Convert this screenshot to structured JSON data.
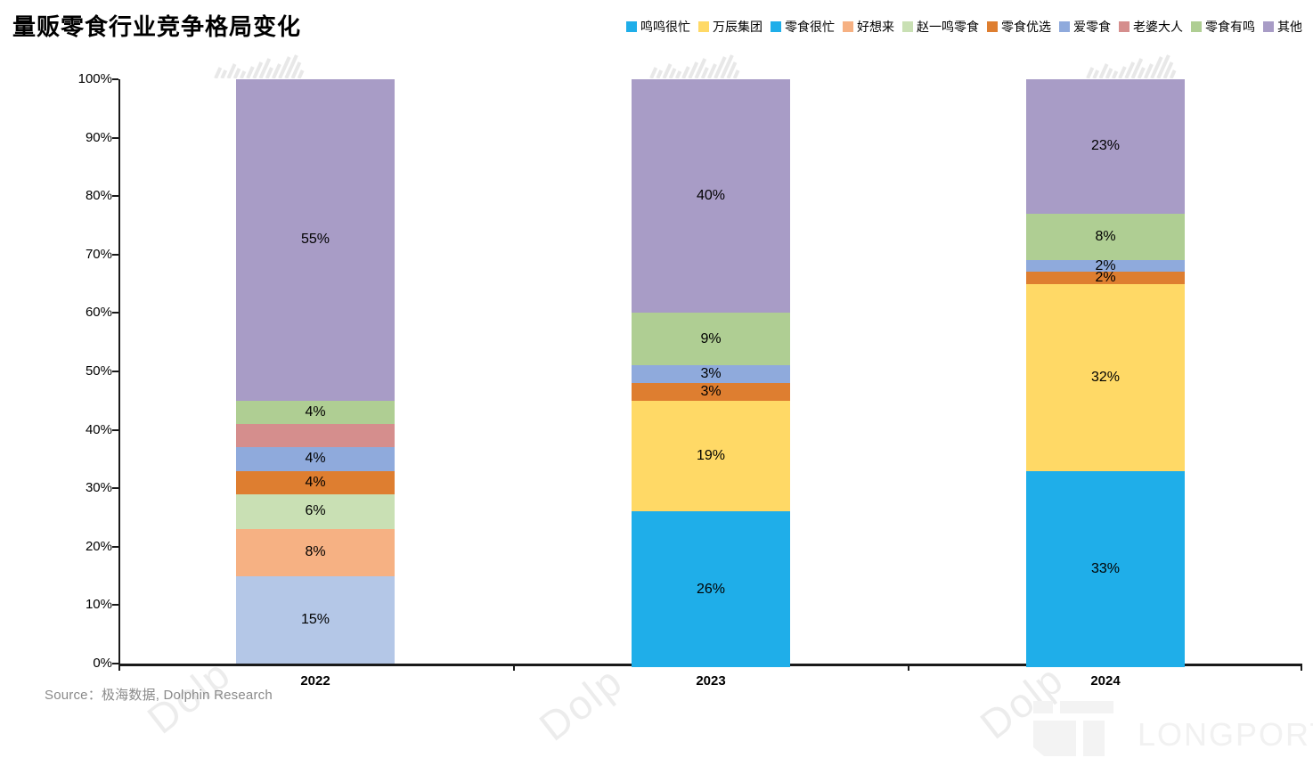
{
  "title": "量贩零食行业竞争格局变化",
  "source": "Source：极海数据, Dolphin Research",
  "watermark": {
    "text": "Dolp",
    "brand": "LONGPORT"
  },
  "chart_data": {
    "type": "bar",
    "stacked": true,
    "unit": "%",
    "title": "量贩零食行业竞争格局变化",
    "categories": [
      "2022",
      "2023",
      "2024"
    ],
    "y_ticks": [
      "0%",
      "10%",
      "20%",
      "30%",
      "40%",
      "50%",
      "60%",
      "70%",
      "80%",
      "90%",
      "100%"
    ],
    "ylim": [
      0,
      100
    ],
    "grid": false,
    "legend_position": "top-right",
    "series": [
      {
        "name": "鸣鸣很忙",
        "color": "#1FAEE9",
        "values": [
          0,
          26,
          33
        ],
        "labels": [
          "",
          "26%",
          "33%"
        ]
      },
      {
        "name": "万辰集团",
        "color": "#FFD966",
        "values": [
          0,
          19,
          32
        ],
        "labels": [
          "",
          "19%",
          "32%"
        ]
      },
      {
        "name": "零食很忙",
        "color": "#B4C7E7",
        "legend_color": "#1FAEE9",
        "values": [
          15,
          0,
          0
        ],
        "labels": [
          "15%",
          "",
          ""
        ]
      },
      {
        "name": "好想来",
        "color": "#F6B183",
        "values": [
          8,
          0,
          0
        ],
        "labels": [
          "8%",
          "",
          ""
        ]
      },
      {
        "name": "赵一鸣零食",
        "color": "#C9E0B4",
        "values": [
          6,
          0,
          0
        ],
        "labels": [
          "6%",
          "",
          ""
        ]
      },
      {
        "name": "零食优选",
        "color": "#DE7E30",
        "values": [
          4,
          3,
          2
        ],
        "labels": [
          "4%",
          "3%",
          "2%"
        ]
      },
      {
        "name": "爱零食",
        "color": "#8FAADC",
        "values": [
          4,
          3,
          2
        ],
        "labels": [
          "4%",
          "3%",
          "2%"
        ]
      },
      {
        "name": "老婆大人",
        "color": "#D58E8D",
        "values": [
          4,
          0,
          0
        ],
        "labels": [
          "",
          "",
          ""
        ]
      },
      {
        "name": "零食有鸣",
        "color": "#AFCE93",
        "values": [
          4,
          9,
          8
        ],
        "labels": [
          "4%",
          "9%",
          "8%"
        ]
      },
      {
        "name": "其他",
        "color": "#A89CC6",
        "values": [
          55,
          40,
          23
        ],
        "labels": [
          "55%",
          "40%",
          "23%"
        ]
      }
    ]
  }
}
